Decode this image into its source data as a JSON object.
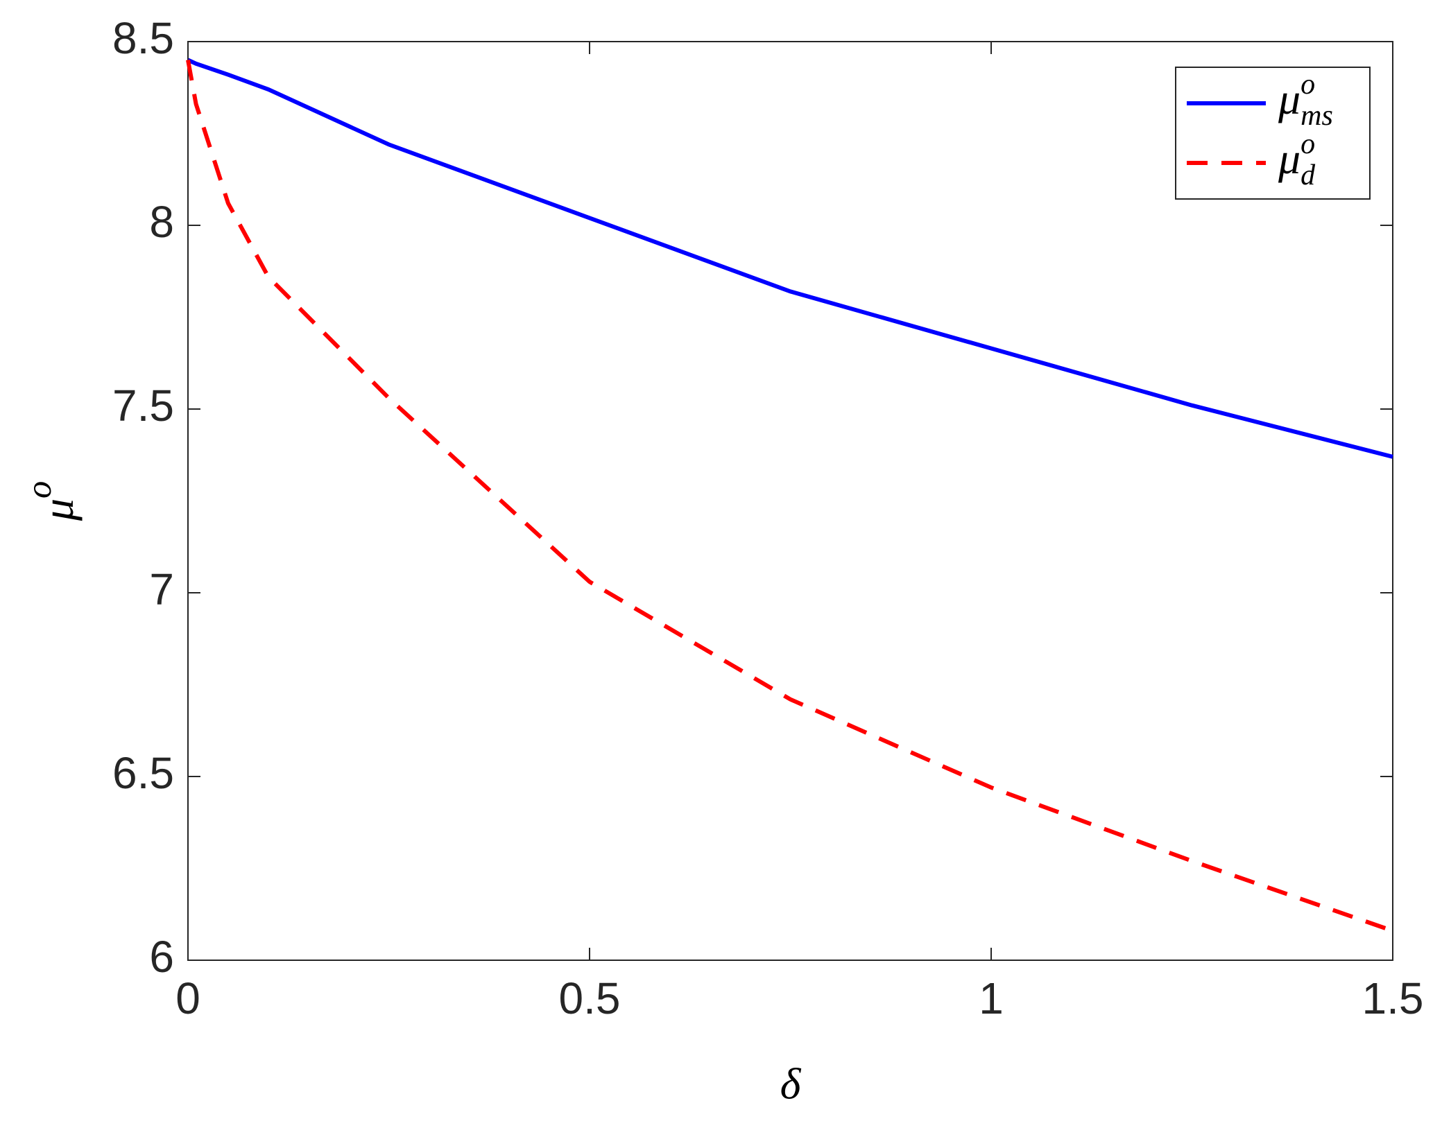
{
  "chart_data": {
    "type": "line",
    "xlabel": "δ",
    "ylabel": "μ^o",
    "x": [
      0,
      0.01,
      0.05,
      0.1,
      0.25,
      0.5,
      0.75,
      1,
      1.25,
      1.5
    ],
    "series": [
      {
        "name": "μ^o_ms",
        "color": "#0000ff",
        "dash": "solid",
        "values": [
          8.45,
          8.44,
          8.41,
          8.37,
          8.22,
          8.02,
          7.82,
          7.665,
          7.51,
          7.37
        ]
      },
      {
        "name": "μ^o_d",
        "color": "#ff0000",
        "dash": "dashed",
        "values": [
          8.45,
          8.33,
          8.06,
          7.86,
          7.53,
          7.03,
          6.71,
          6.47,
          6.27,
          6.08
        ]
      }
    ],
    "xlim": [
      0,
      1.5
    ],
    "xticks": [
      0,
      0.5,
      1,
      1.5
    ],
    "ylim": [
      6,
      8.5
    ],
    "yticks": [
      6,
      6.5,
      7,
      7.5,
      8,
      8.5
    ],
    "grid": false,
    "legend": "upper-right"
  }
}
